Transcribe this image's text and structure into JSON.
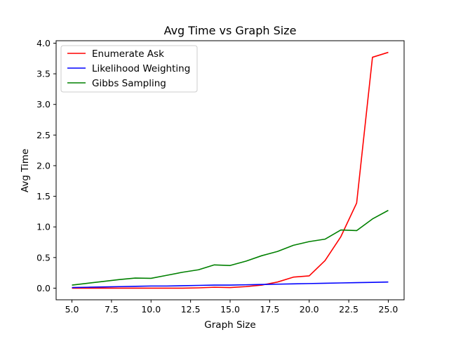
{
  "chart_data": {
    "type": "line",
    "title": "Avg Time vs Graph Size",
    "xlabel": "Graph Size",
    "ylabel": "Avg Time",
    "xlim": [
      4.0,
      26.0
    ],
    "ylim": [
      -0.19,
      4.04
    ],
    "xticks": [
      5.0,
      7.5,
      10.0,
      12.5,
      15.0,
      17.5,
      20.0,
      22.5,
      25.0
    ],
    "xtick_labels": [
      "5.0",
      "7.5",
      "10.0",
      "12.5",
      "15.0",
      "17.5",
      "20.0",
      "22.5",
      "25.0"
    ],
    "yticks": [
      0.0,
      0.5,
      1.0,
      1.5,
      2.0,
      2.5,
      3.0,
      3.5,
      4.0
    ],
    "ytick_labels": [
      "0.0",
      "0.5",
      "1.0",
      "1.5",
      "2.0",
      "2.5",
      "3.0",
      "3.5",
      "4.0"
    ],
    "grid": false,
    "legend_position": "top-left",
    "x": [
      5,
      6,
      7,
      8,
      9,
      10,
      11,
      12,
      13,
      14,
      15,
      16,
      17,
      18,
      19,
      20,
      21,
      22,
      23,
      24,
      25
    ],
    "series": [
      {
        "name": "Enumerate Ask",
        "color": "#ff0000",
        "values": [
          0.0,
          0.0,
          0.0,
          0.0,
          0.0,
          0.0,
          0.0,
          0.0,
          0.005,
          0.015,
          0.01,
          0.025,
          0.05,
          0.1,
          0.18,
          0.2,
          0.45,
          0.84,
          1.39,
          3.77,
          3.85
        ]
      },
      {
        "name": "Likelihood Weighting",
        "color": "#0000ff",
        "values": [
          0.01,
          0.015,
          0.02,
          0.025,
          0.03,
          0.035,
          0.035,
          0.04,
          0.045,
          0.05,
          0.05,
          0.055,
          0.06,
          0.065,
          0.07,
          0.075,
          0.08,
          0.085,
          0.09,
          0.095,
          0.1
        ]
      },
      {
        "name": "Gibbs Sampling",
        "color": "#008000",
        "values": [
          0.05,
          0.08,
          0.11,
          0.14,
          0.165,
          0.16,
          0.21,
          0.26,
          0.3,
          0.38,
          0.37,
          0.44,
          0.53,
          0.6,
          0.7,
          0.76,
          0.8,
          0.95,
          0.94,
          1.13,
          1.27
        ]
      }
    ]
  }
}
